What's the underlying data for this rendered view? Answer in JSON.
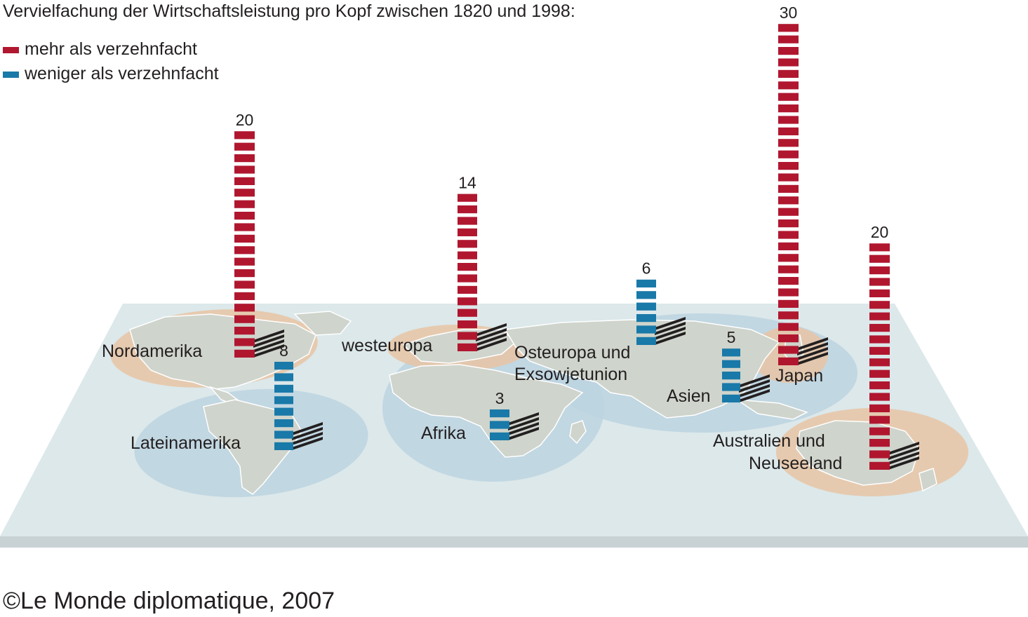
{
  "title": "Vervielfachung der Wirtschaftsleistung pro Kopf zwischen 1820 und 1998:",
  "legend": {
    "more": "mehr als verzehnfacht",
    "less": "weniger als verzehnfacht"
  },
  "colors": {
    "more": "#b0172f",
    "less": "#1979a8",
    "plane": "#dce8ea",
    "land": "#cfd4cc",
    "halo_orange": "#e8c4a4",
    "halo_blue": "#bcd3e0"
  },
  "credit": "©Le Monde diplomatique, 2007",
  "chart_data": {
    "type": "bar",
    "categories": [
      "Nordamerika",
      "Lateinamerika",
      "westeuropa",
      "Afrika",
      "Osteuropa und Exsowjetunion",
      "Asien",
      "Japan",
      "Australien und Neuseeland"
    ],
    "values": [
      20,
      8,
      14,
      3,
      6,
      5,
      30,
      20
    ],
    "value_labels": [
      "20",
      "8",
      "14",
      "3",
      "6",
      "5",
      "30",
      "20"
    ],
    "category": [
      "more",
      "less",
      "more",
      "less",
      "less",
      "less",
      "more",
      "more"
    ],
    "legend": [
      "mehr als verzehnfacht",
      "weniger als verzehnfacht"
    ],
    "legend_position": "top-left",
    "regions": [
      {
        "name": "Nordamerika",
        "label_lines": [
          "Nordamerika"
        ]
      },
      {
        "name": "Lateinamerika",
        "label_lines": [
          "Lateinamerika"
        ]
      },
      {
        "name": "westeuropa",
        "label_lines": [
          "westeuropa"
        ]
      },
      {
        "name": "Afrika",
        "label_lines": [
          "Afrika"
        ]
      },
      {
        "name": "Osteuropa und Exsowjetunion",
        "label_lines": [
          "Osteuropa und",
          "Exsowjetunion"
        ]
      },
      {
        "name": "Asien",
        "label_lines": [
          "Asien"
        ]
      },
      {
        "name": "Japan",
        "label_lines": [
          "Japan"
        ]
      },
      {
        "name": "Australien und Neuseeland",
        "label_lines": [
          "Australien und",
          "Neuseeland"
        ]
      }
    ]
  }
}
